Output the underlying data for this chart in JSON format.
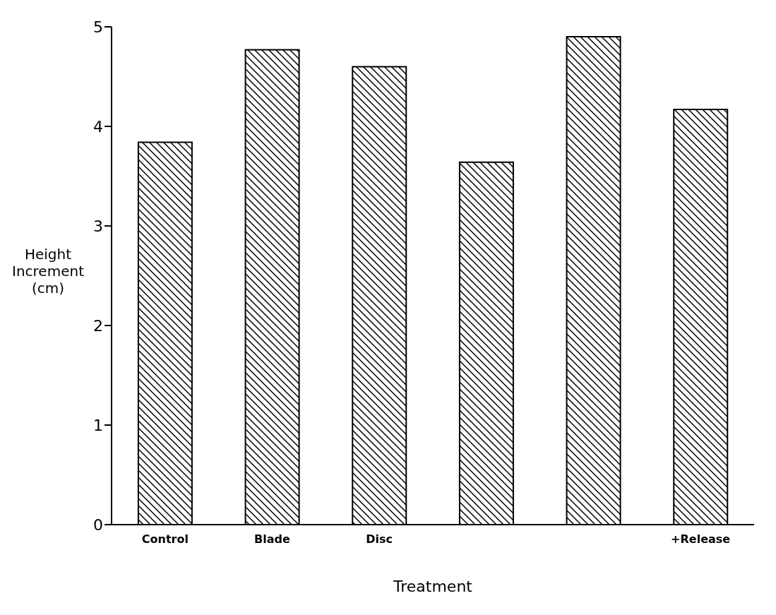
{
  "chart_data": {
    "type": "bar",
    "categories": [
      "Control",
      "Blade",
      "Disc",
      null,
      null,
      "+Release"
    ],
    "values": [
      3.84,
      4.77,
      4.6,
      3.64,
      4.9,
      4.17
    ],
    "color": "#000000",
    "xlabel": "Treatment",
    "ylabel": "Height\nIncrement\n(cm)",
    "ylim": [
      0,
      5
    ],
    "yticks": [
      0,
      1,
      2,
      3,
      4,
      5
    ],
    "grid": false,
    "legend": false
  }
}
